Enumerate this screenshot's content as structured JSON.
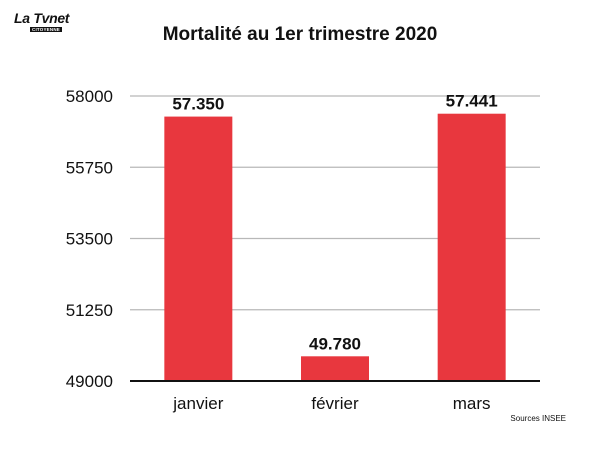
{
  "logo": {
    "name": "La Tvnet",
    "tagline": "CITOYENNE"
  },
  "chart_data": {
    "type": "bar",
    "title": "Mortalité au 1er trimestre 2020",
    "categories": [
      "janvier",
      "février",
      "mars"
    ],
    "values": [
      57350,
      49780,
      57441
    ],
    "value_labels": [
      "57.350",
      "49.780",
      "57.441"
    ],
    "yticks": [
      49000,
      51250,
      53500,
      55750,
      58000
    ],
    "ylim": [
      49000,
      58000
    ],
    "xlabel": "",
    "ylabel": "",
    "grid": true,
    "bar_color": "#e8373e",
    "source": "Sources INSEE"
  }
}
